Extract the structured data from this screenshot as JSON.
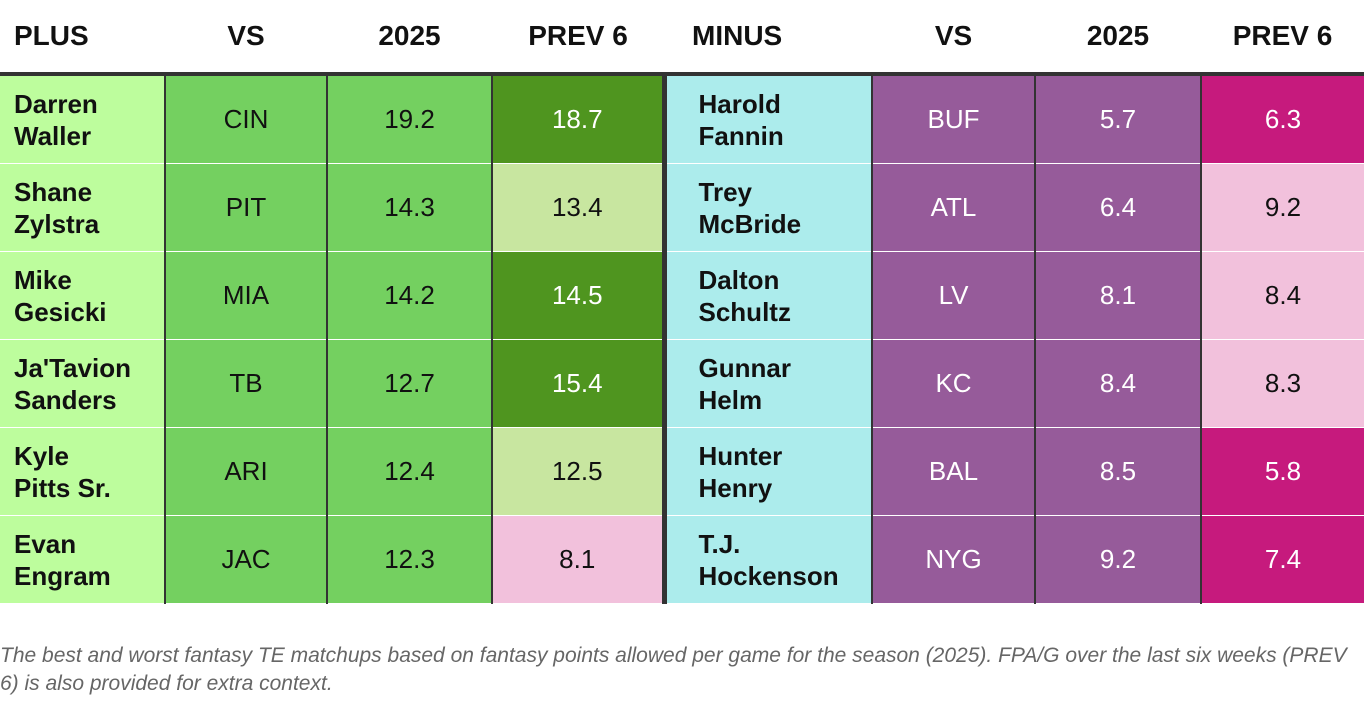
{
  "headers": {
    "plus": "PLUS",
    "vs": "VS",
    "season": "2025",
    "prev": "PREV 6",
    "minus": "MINUS",
    "vs2": "VS",
    "season2": "2025",
    "prev2": "PREV 6"
  },
  "rows": [
    {
      "plus": {
        "first": "Darren",
        "last": "Waller",
        "vs": "CIN",
        "season": "19.2",
        "prev": "18.7",
        "prev_tier": "high"
      },
      "minus": {
        "first": "Harold",
        "last": "Fannin",
        "vs": "BUF",
        "season": "5.7",
        "prev": "6.3",
        "prev_tier": "low"
      }
    },
    {
      "plus": {
        "first": "Shane",
        "last": "Zylstra",
        "vs": "PIT",
        "season": "14.3",
        "prev": "13.4",
        "prev_tier": "mid"
      },
      "minus": {
        "first": "Trey",
        "last": "McBride",
        "vs": "ATL",
        "season": "6.4",
        "prev": "9.2",
        "prev_tier": "mid"
      }
    },
    {
      "plus": {
        "first": "Mike",
        "last": "Gesicki",
        "vs": "MIA",
        "season": "14.2",
        "prev": "14.5",
        "prev_tier": "high"
      },
      "minus": {
        "first": "Dalton",
        "last": "Schultz",
        "vs": "LV",
        "season": "8.1",
        "prev": "8.4",
        "prev_tier": "mid"
      }
    },
    {
      "plus": {
        "first": "Ja'Tavion",
        "last": "Sanders",
        "vs": "TB",
        "season": "12.7",
        "prev": "15.4",
        "prev_tier": "high"
      },
      "minus": {
        "first": "Gunnar",
        "last": "Helm",
        "vs": "KC",
        "season": "8.4",
        "prev": "8.3",
        "prev_tier": "mid"
      }
    },
    {
      "plus": {
        "first": "Kyle",
        "last": "Pitts Sr.",
        "vs": "ARI",
        "season": "12.4",
        "prev": "12.5",
        "prev_tier": "mid"
      },
      "minus": {
        "first": "Hunter",
        "last": "Henry",
        "vs": "BAL",
        "season": "8.5",
        "prev": "5.8",
        "prev_tier": "low"
      }
    },
    {
      "plus": {
        "first": "Evan",
        "last": "Engram",
        "vs": "JAC",
        "season": "12.3",
        "prev": "8.1",
        "prev_tier": "low"
      },
      "minus": {
        "first": "T.J.",
        "last": "Hockenson",
        "vs": "NYG",
        "season": "9.2",
        "prev": "7.4",
        "prev_tier": "low"
      }
    }
  ],
  "colors": {
    "plus_player_bg": "#bdfd9d",
    "plus_stat_bg": "#74d060",
    "plus_prev_high": "#4f951f",
    "plus_prev_mid": "#c8e6a0",
    "plus_prev_low": "#f2c1dc",
    "minus_player_bg": "#acecec",
    "minus_stat_bg": "#965b9a",
    "minus_prev_low": "#c61a7d",
    "minus_prev_mid": "#f2c1dc"
  },
  "note": "The best and worst fantasy TE matchups based on fantasy points allowed per game for the season (2025). FPA/G over the last six weeks (PREV 6) is also provided for extra context."
}
